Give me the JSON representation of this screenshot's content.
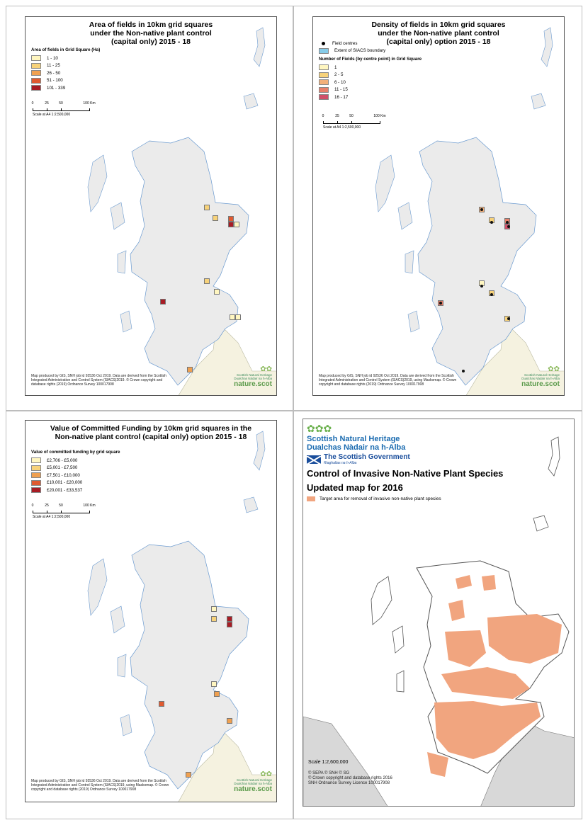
{
  "colors": {
    "land": "#ebebeb",
    "coast": "#6a9ad0",
    "england": "#f5f2e0",
    "target_area": "#f1a57f"
  },
  "panel1": {
    "title": "Area of fields in 10km grid squares under the Non-native plant control (capital only) 2015 - 18",
    "legend_title": "Area of fields in Grid Square (Ha)",
    "legend": [
      {
        "label": "1 - 10",
        "color": "#fff6c0"
      },
      {
        "label": "11 - 25",
        "color": "#f7d27a"
      },
      {
        "label": "26 - 50",
        "color": "#f0a050"
      },
      {
        "label": "51 - 100",
        "color": "#e05a30"
      },
      {
        "label": "101 - 339",
        "color": "#a81c24"
      }
    ],
    "scale_ticks": [
      "0",
      "25",
      "50",
      "100 Km"
    ],
    "scale_text": "Scale at A4 1:2,500,000",
    "credit": "Map produced by GIS, SNH job id 92536 Oct 2019. Data are derived from the Scottish Integrated Administration and Control System (SIACS)2019. © Crown copyright and database rights (2019) Ordnance Survey 100017908",
    "logo_text": "Scottish Natural Heritage Dualchas Nàdair na h-Alba",
    "logo_brand": "nature.scot"
  },
  "panel2": {
    "title": "Density of fields in 10km grid squares under the Non-native plant control (capital only) option 2015 - 18",
    "field_centres_label": "Field centres",
    "extent_label": "Extent of SIACS boundary",
    "extent_color": "#86cbe8",
    "legend_title": "Number of Fields (by centre point) in Grid Square",
    "legend": [
      {
        "label": "1",
        "color": "#fff6c0"
      },
      {
        "label": "2 - 5",
        "color": "#f7d27a"
      },
      {
        "label": "6 - 10",
        "color": "#f2b07a"
      },
      {
        "label": "11 - 15",
        "color": "#e8806a"
      },
      {
        "label": "16 - 17",
        "color": "#d0506a"
      }
    ],
    "scale_ticks": [
      "0",
      "25",
      "50",
      "100 Km"
    ],
    "scale_text": "Scale at A4 1:2,500,000",
    "credit": "Map produced by GIS, SNH job id 92536 Oct 2019. Data are derived from the Scottish Integrated Administration and Control System (SIACS)2019, using Maskomap. © Crown copyright and database rights (2019) Ordnance Survey 100017908",
    "logo_text": "Scottish Natural Heritage Dualchas Nàdair na h-Alba",
    "logo_brand": "nature.scot"
  },
  "panel3": {
    "title": "Value of Committed Funding by 10km grid squares in the Non-native plant control (capital only) option 2015 - 18",
    "legend_title": "Value of committed funding by grid square",
    "legend": [
      {
        "label": "£2,706 - £5,000",
        "color": "#fff6c0"
      },
      {
        "label": "£5,001 - £7,500",
        "color": "#f7d27a"
      },
      {
        "label": "£7,501 - £10,000",
        "color": "#f0a050"
      },
      {
        "label": "£10,001 - £20,000",
        "color": "#e05a30"
      },
      {
        "label": "£20,001 - £33,537",
        "color": "#a81c24"
      }
    ],
    "scale_ticks": [
      "0",
      "25",
      "50",
      "100 Km"
    ],
    "scale_text": "Scale at A4 1:2,500,000",
    "credit": "Map produced by GIS, SNH job id 92536 Oct 2019. Data are derived from the Scottish Integrated Administration and Control System (SIACS)2019, using Maskomap. © Crown copyright and database rights (2019) Ordnance Survey 100017908",
    "logo_text": "Scottish Natural Heritage Dualchas Nàdair na h-Alba",
    "logo_brand": "nature.scot"
  },
  "panel4": {
    "org1": "Scottish Natural Heritage",
    "org2": "Dualchas Nàdair na h-Alba",
    "gov_name": "The Scottish Government",
    "gov_sub": "Riaghaltas na h-Alba",
    "title1": "Control of Invasive Non-Native Plant Species",
    "title2": "Updated map for 2016",
    "legend_label": "Target area for removal of invasive non-native plant species",
    "scale": "Scale   1:2,600,000",
    "credit1": "© SEPA © SNH © SG",
    "credit2": "© Crown copyright and database rights 2016",
    "credit3": "SNH Ordnance Survey Licence 100017908"
  }
}
